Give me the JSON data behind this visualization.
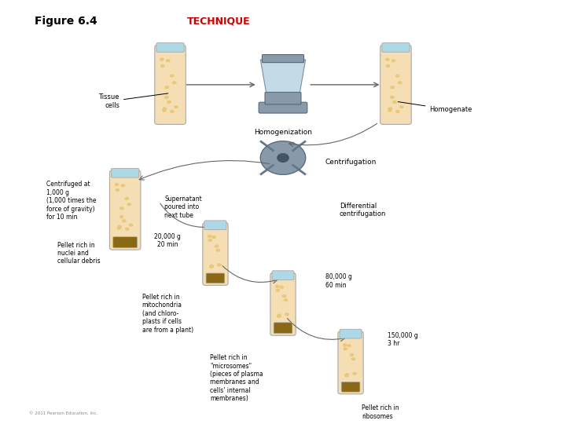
{
  "title": "Figure 6.4",
  "technique_color": "#cc0000",
  "background_color": "#ffffff",
  "figure_size": [
    7.2,
    5.4
  ],
  "dpi": 100,
  "labels": {
    "technique_label": "TECHNIQUE",
    "homogenization": "Homogenization",
    "tissue_cells": "Tissue\ncells",
    "homogenate": "Homogenate",
    "centrifuged_at": "Centrifuged at\n1,000 g\n(1,000 times the\nforce of gravity)\nfor 10 min",
    "centrifugation": "Centrifugation",
    "supernatant": "Supernatant\npoured into\nnext tube",
    "differential": "Differential\ncentrifugation",
    "20000g": "20,000 g\n20 min",
    "80000g": "80,000 g\n60 min",
    "150000g": "150,000 g\n3 hr",
    "pellet1": "Pellet rich in\nnuclei and\ncellular debris",
    "pellet2": "Pellet rich in\nmitochondria\n(and chloro-\nplasts if cells\nare from a plant)",
    "pellet3": "Pellet rich in\n\"microsomes\"\n(pieces of plasma\nmembranes and\ncells' internal\nmembranes)",
    "pellet4": "Pellet rich in\nribosomes",
    "copyright": "© 2011 Pearson Education, Inc."
  },
  "tube_color": "#f5deb3",
  "tube_pellet_color": "#8b6914",
  "tube_border_color": "#aaaaaa",
  "tube_cap_color": "#add8e6",
  "arrow_color": "#666666"
}
